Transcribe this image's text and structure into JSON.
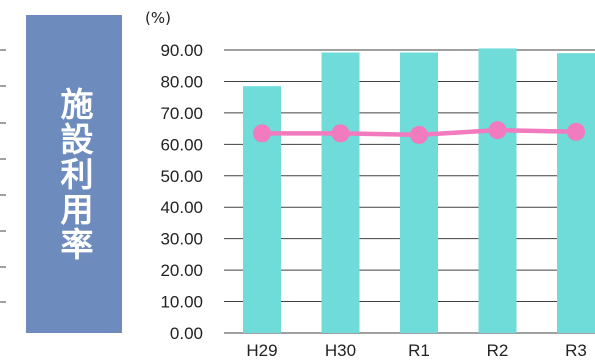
{
  "chart_data": {
    "type": "bar",
    "title": "施設利用率",
    "unit": "(%)",
    "categories": [
      "H29",
      "H30",
      "R1",
      "R2",
      "R3"
    ],
    "series": [
      {
        "type": "bar",
        "values": [
          78.5,
          89.2,
          89.2,
          90.5,
          89.0
        ],
        "color": "#6fdcd9"
      },
      {
        "type": "line",
        "values": [
          63.5,
          63.5,
          63.0,
          64.5,
          64.0
        ],
        "color": "#f27abf"
      }
    ],
    "ylim": [
      0,
      90
    ],
    "yticks": [
      "90.00",
      "80.00",
      "70.00",
      "60.00",
      "50.00",
      "40.00",
      "30.00",
      "20.00",
      "10.00",
      "0.00"
    ],
    "grid": true,
    "gridColor": "#404040",
    "titleBg": "#6e8bbd"
  }
}
